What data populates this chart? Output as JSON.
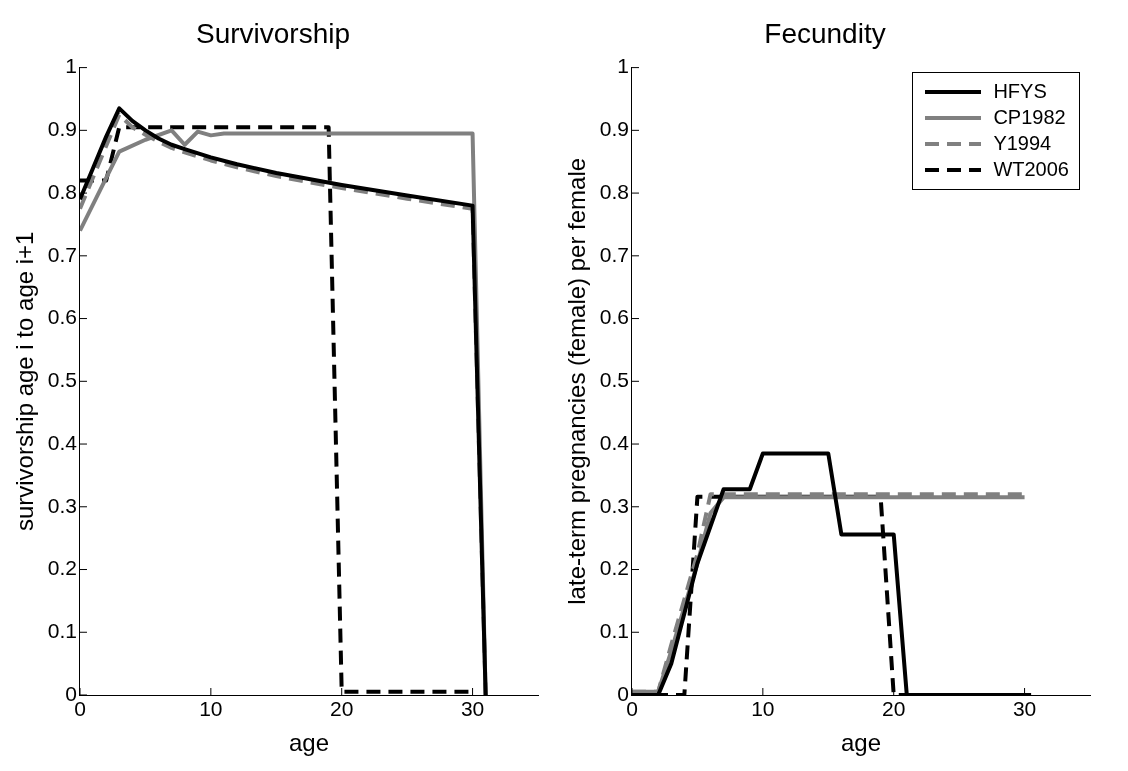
{
  "chart_data": [
    {
      "type": "line",
      "title": "Survivorship",
      "xlabel": "age",
      "ylabel": "survivorship age i to age i+1",
      "xlim": [
        0,
        35
      ],
      "xticks": [
        0,
        10,
        20,
        30
      ],
      "ylim": [
        0,
        1
      ],
      "yticks": [
        0,
        0.1,
        0.2,
        0.3,
        0.4,
        0.5,
        0.6,
        0.7,
        0.8,
        0.9,
        1
      ],
      "grid": false,
      "series": [
        {
          "color": "#000000",
          "line_style": "solid",
          "x": [
            0,
            1,
            2,
            3,
            4,
            5,
            6,
            7,
            8,
            10,
            12,
            15,
            20,
            25,
            30,
            31
          ],
          "values": [
            0.79,
            0.84,
            0.89,
            0.935,
            0.915,
            0.9,
            0.887,
            0.877,
            0.87,
            0.857,
            0.846,
            0.832,
            0.813,
            0.796,
            0.78,
            0
          ]
        },
        {
          "color": "#808080",
          "line_style": "solid",
          "x": [
            0,
            3,
            5,
            7,
            8,
            9,
            10,
            11,
            30,
            31
          ],
          "values": [
            0.74,
            0.866,
            0.885,
            0.9,
            0.877,
            0.898,
            0.892,
            0.895,
            0.895,
            0
          ]
        },
        {
          "color": "#808080",
          "line_style": "dashed",
          "x": [
            0,
            3,
            4,
            5,
            6,
            7,
            8,
            10,
            12,
            15,
            20,
            25,
            30,
            31
          ],
          "values": [
            0.775,
            0.925,
            0.905,
            0.893,
            0.882,
            0.872,
            0.865,
            0.852,
            0.841,
            0.827,
            0.808,
            0.791,
            0.775,
            0
          ]
        },
        {
          "color": "#000000",
          "line_style": "dashed",
          "x": [
            0,
            2,
            3,
            19,
            20,
            30
          ],
          "values": [
            0.82,
            0.82,
            0.905,
            0.905,
            0.005,
            0.005
          ]
        }
      ]
    },
    {
      "type": "line",
      "title": "Fecundity",
      "xlabel": "age",
      "ylabel": "late-term pregnancies (female) per female",
      "xlim": [
        0,
        35
      ],
      "xticks": [
        0,
        10,
        20,
        30
      ],
      "ylim": [
        0,
        1
      ],
      "yticks": [
        0,
        0.1,
        0.2,
        0.3,
        0.4,
        0.5,
        0.6,
        0.7,
        0.8,
        0.9,
        1
      ],
      "grid": false,
      "legend": "top right",
      "series": [
        {
          "name": "HFYS",
          "color": "#000000",
          "line_style": "solid",
          "x": [
            0,
            2,
            3,
            5,
            7,
            9,
            10,
            15,
            16,
            20,
            21,
            30.5
          ],
          "values": [
            0,
            0,
            0.05,
            0.21,
            0.328,
            0.328,
            0.385,
            0.385,
            0.256,
            0.256,
            0,
            0
          ]
        },
        {
          "name": "CP1982",
          "color": "#808080",
          "line_style": "solid",
          "x": [
            0,
            2,
            3,
            5,
            6,
            7,
            30
          ],
          "values": [
            0.005,
            0.005,
            0.07,
            0.21,
            0.29,
            0.315,
            0.315
          ]
        },
        {
          "name": "Y1994",
          "color": "#808080",
          "line_style": "dashed",
          "x": [
            0,
            2,
            3,
            5,
            6,
            30
          ],
          "values": [
            0.005,
            0.005,
            0.08,
            0.225,
            0.32,
            0.32
          ]
        },
        {
          "name": "WT2006",
          "color": "#000000",
          "line_style": "dashed",
          "x": [
            0,
            4,
            5,
            19,
            20,
            30
          ],
          "values": [
            0,
            0,
            0.316,
            0.316,
            0,
            0
          ]
        }
      ]
    }
  ]
}
